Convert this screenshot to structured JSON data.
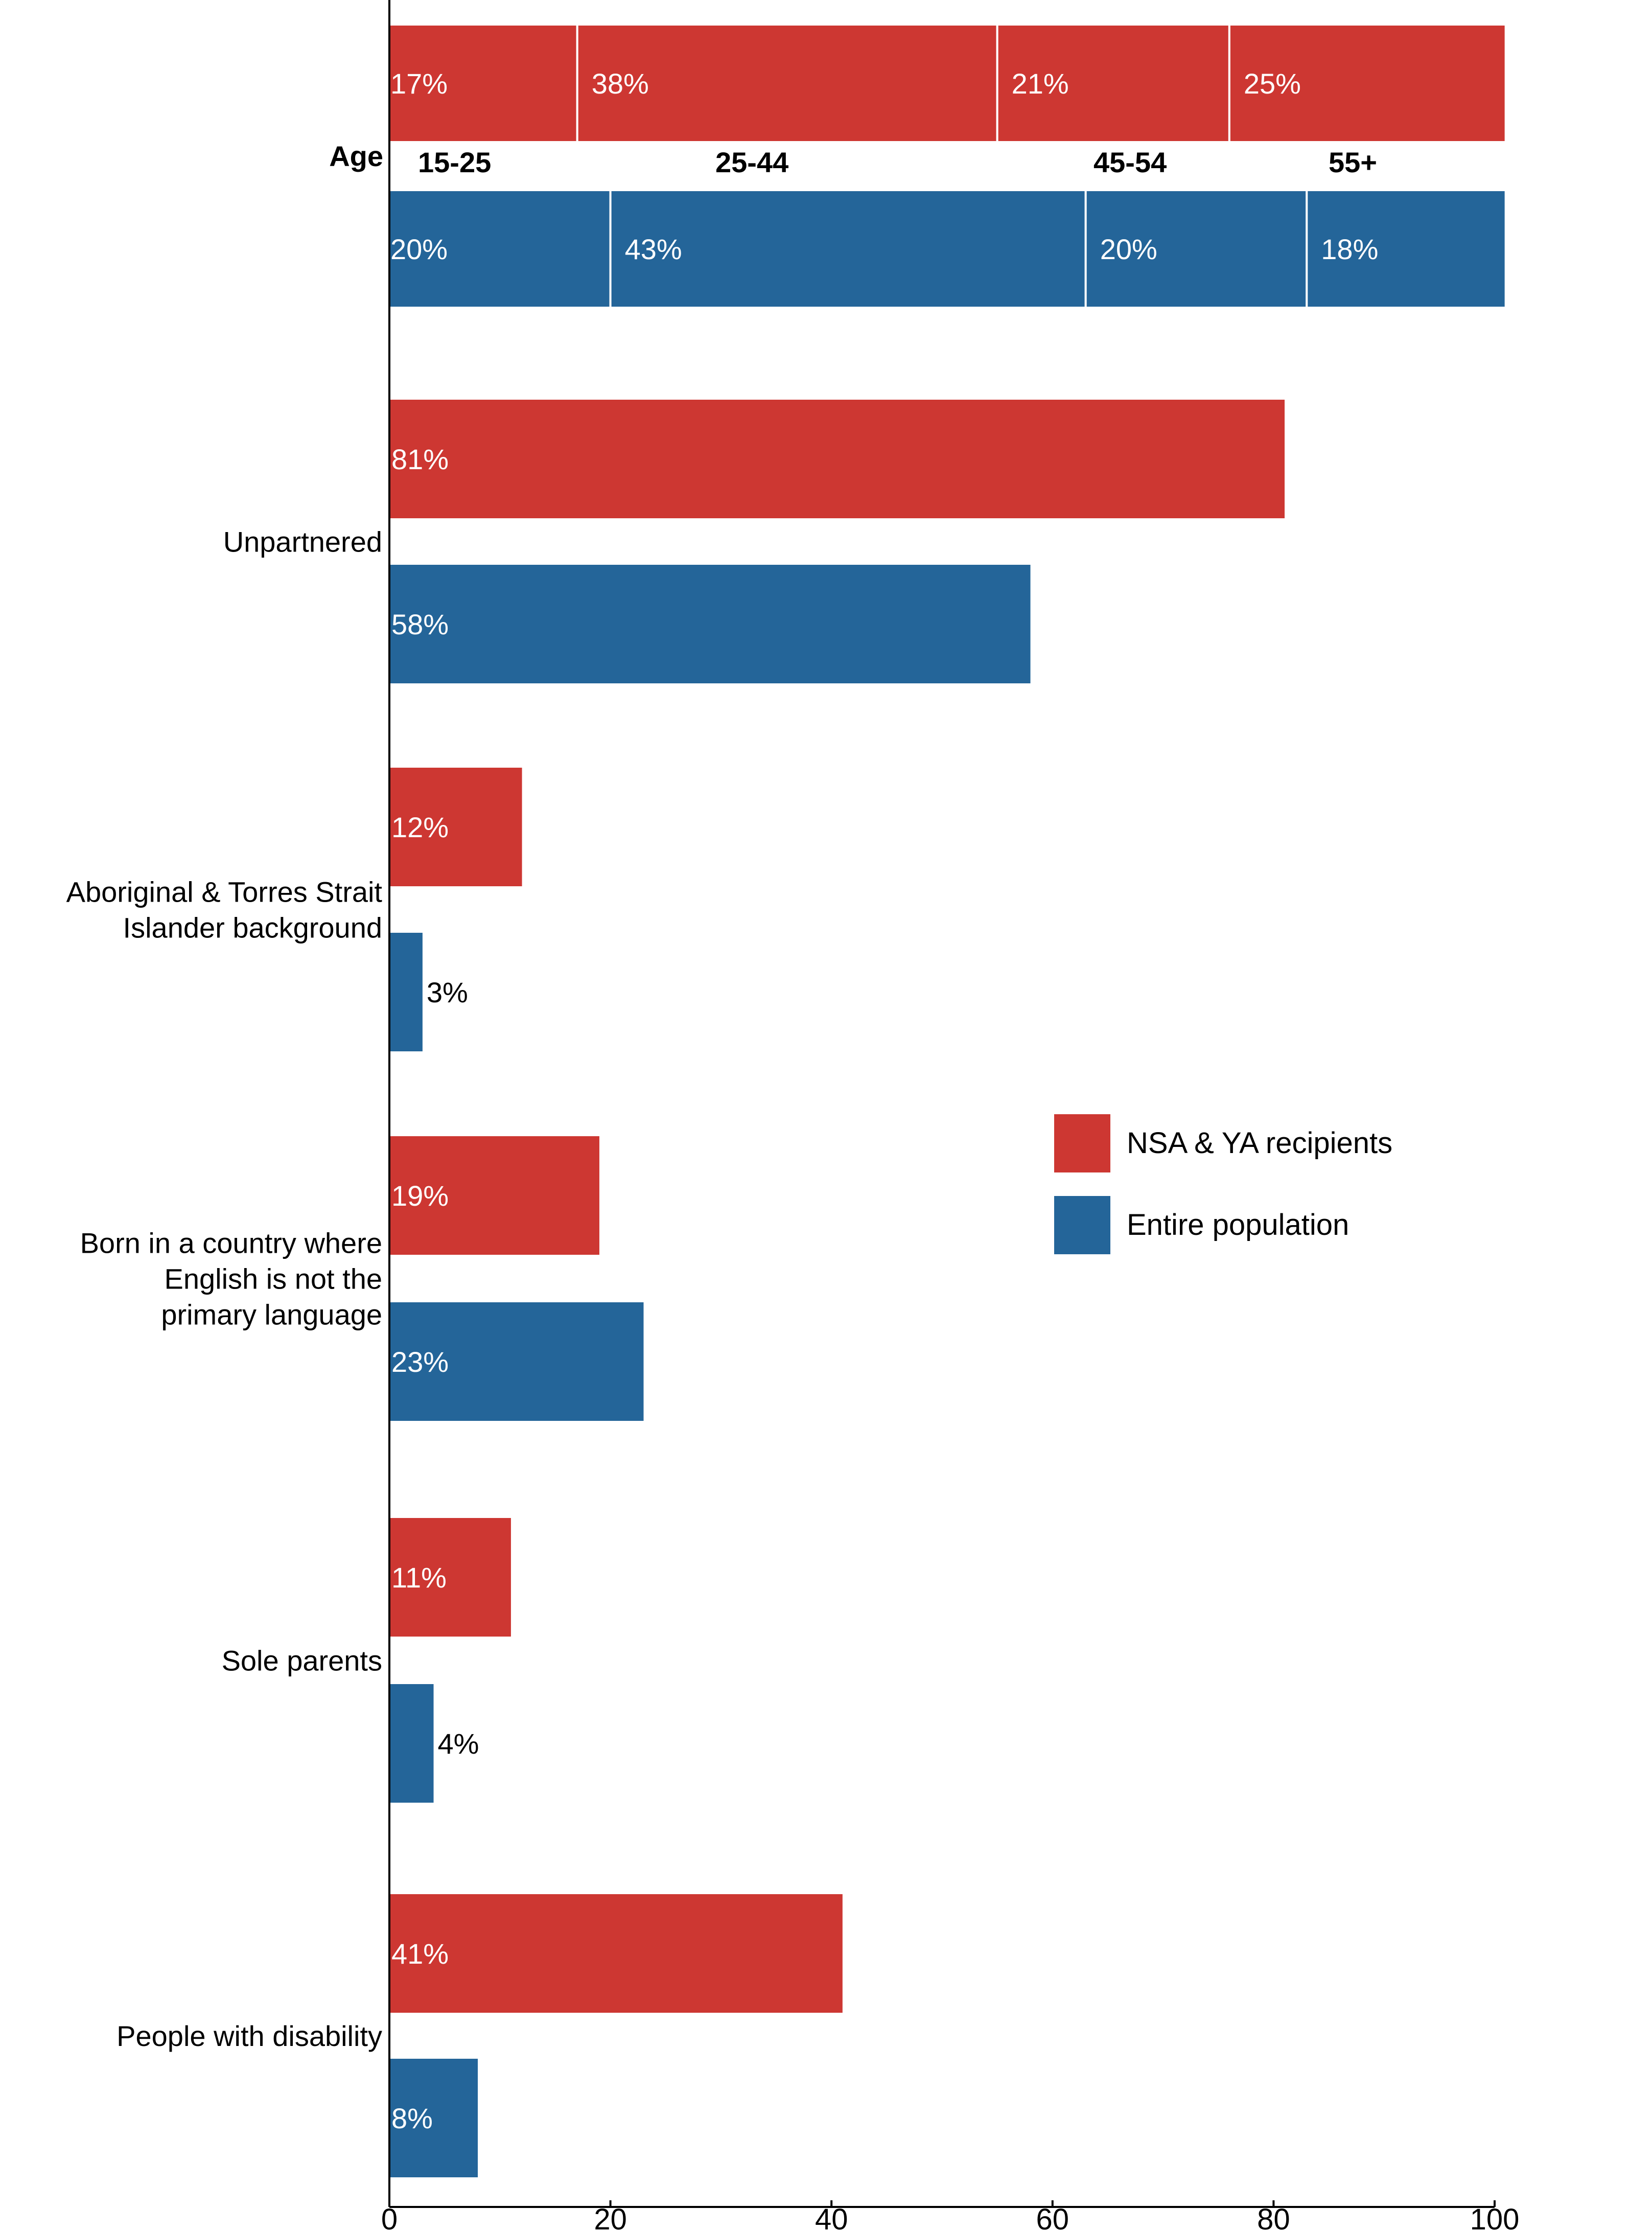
{
  "colors": {
    "nsa": "#cd3732",
    "population": "#246599",
    "axis": "#000000",
    "label_light": "#ffffff",
    "label_dark": "#000000"
  },
  "chart_data": {
    "type": "bar",
    "orientation": "horizontal",
    "xlim": [
      0,
      100
    ],
    "x_ticks": [
      0,
      20,
      40,
      60,
      80,
      100
    ],
    "grid": false,
    "legend_position": "right",
    "series": [
      {
        "name": "NSA & YA recipients",
        "color": "#cd3732"
      },
      {
        "name": "Entire population",
        "color": "#246599"
      }
    ],
    "age_breakdown": {
      "category": "Age",
      "segments": [
        "15-25",
        "25-44",
        "45-54",
        "55+"
      ],
      "nsa_values": [
        17,
        38,
        21,
        25
      ],
      "nsa_labels": [
        "17%",
        "38%",
        "21%",
        "25%"
      ],
      "population_values": [
        20,
        43,
        20,
        18
      ],
      "population_labels": [
        "20%",
        "43%",
        "20%",
        "18%"
      ]
    },
    "categories": [
      {
        "label": [
          "Unpartnered"
        ],
        "nsa": 81,
        "nsa_label": "81%",
        "population": 58,
        "population_label": "58%"
      },
      {
        "label": [
          "Aboriginal & Torres Strait",
          "Islander background"
        ],
        "nsa": 12,
        "nsa_label": "12%",
        "population": 3,
        "population_label": "3%"
      },
      {
        "label": [
          "Born in a country where",
          "English is not the",
          "primary language"
        ],
        "nsa": 19,
        "nsa_label": "19%",
        "population": 23,
        "population_label": "23%"
      },
      {
        "label": [
          "Sole parents"
        ],
        "nsa": 11,
        "nsa_label": "11%",
        "population": 4,
        "population_label": "4%"
      },
      {
        "label": [
          "People with disability"
        ],
        "nsa": 41,
        "nsa_label": "41%",
        "population": 8,
        "population_label": "8%"
      }
    ]
  }
}
